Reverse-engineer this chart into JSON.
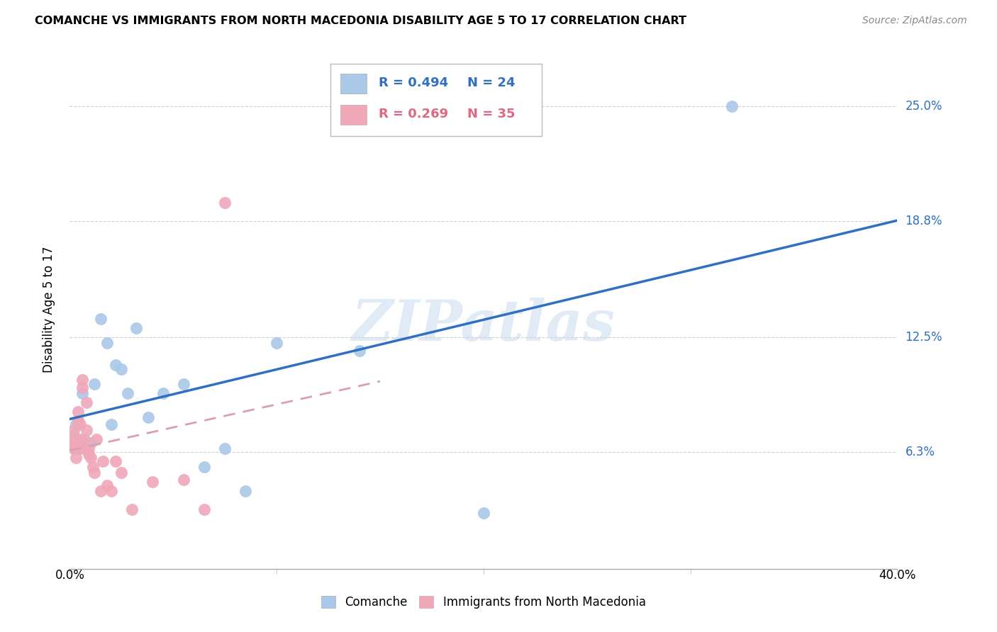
{
  "title": "COMANCHE VS IMMIGRANTS FROM NORTH MACEDONIA DISABILITY AGE 5 TO 17 CORRELATION CHART",
  "source": "Source: ZipAtlas.com",
  "ylabel": "Disability Age 5 to 17",
  "watermark": "ZIPatlas",
  "xlim": [
    0.0,
    0.4
  ],
  "ylim": [
    0.0,
    0.28
  ],
  "yticks": [
    0.063,
    0.125,
    0.188,
    0.25
  ],
  "ytick_labels": [
    "6.3%",
    "12.5%",
    "18.8%",
    "25.0%"
  ],
  "xtick_labels": [
    "0.0%",
    "40.0%"
  ],
  "grid_color": "#d0d0d0",
  "blue_color": "#aac8e8",
  "blue_line_color": "#3070c0",
  "pink_color": "#f0a8b8",
  "pink_line_color": "#e06880",
  "pink_dash_color": "#d8a0b0",
  "legend_blue_R": "R = 0.494",
  "legend_blue_N": "N = 24",
  "legend_pink_R": "R = 0.269",
  "legend_pink_N": "N = 35",
  "legend_label_blue": "Comanche",
  "legend_label_pink": "Immigrants from North Macedonia",
  "comanche_x": [
    0.002,
    0.003,
    0.004,
    0.006,
    0.008,
    0.01,
    0.012,
    0.015,
    0.018,
    0.02,
    0.022,
    0.025,
    0.028,
    0.032,
    0.038,
    0.045,
    0.055,
    0.065,
    0.075,
    0.085,
    0.1,
    0.14,
    0.2,
    0.32
  ],
  "comanche_y": [
    0.072,
    0.078,
    0.08,
    0.095,
    0.068,
    0.068,
    0.1,
    0.135,
    0.122,
    0.078,
    0.11,
    0.108,
    0.095,
    0.13,
    0.082,
    0.095,
    0.1,
    0.055,
    0.065,
    0.042,
    0.122,
    0.118,
    0.03,
    0.25
  ],
  "nmacedonia_x": [
    0.001,
    0.001,
    0.002,
    0.002,
    0.002,
    0.003,
    0.003,
    0.004,
    0.004,
    0.005,
    0.005,
    0.005,
    0.006,
    0.006,
    0.007,
    0.007,
    0.008,
    0.008,
    0.009,
    0.009,
    0.01,
    0.011,
    0.012,
    0.013,
    0.015,
    0.016,
    0.018,
    0.02,
    0.022,
    0.025,
    0.03,
    0.04,
    0.055,
    0.065,
    0.075
  ],
  "nmacedonia_y": [
    0.07,
    0.068,
    0.065,
    0.07,
    0.075,
    0.06,
    0.065,
    0.08,
    0.085,
    0.065,
    0.07,
    0.078,
    0.098,
    0.102,
    0.065,
    0.07,
    0.075,
    0.09,
    0.062,
    0.065,
    0.06,
    0.055,
    0.052,
    0.07,
    0.042,
    0.058,
    0.045,
    0.042,
    0.058,
    0.052,
    0.032,
    0.047,
    0.048,
    0.032,
    0.198
  ]
}
